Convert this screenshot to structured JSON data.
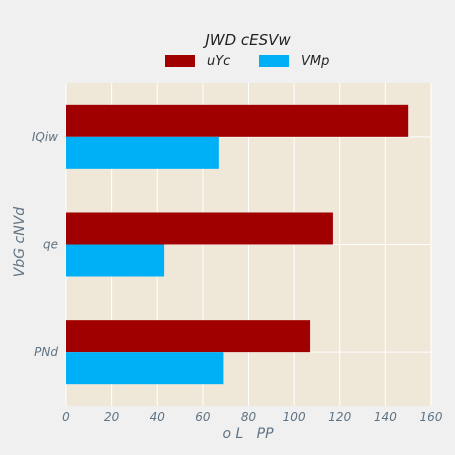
{
  "chart_data": {
    "type": "bar",
    "orientation": "horizontal",
    "categories": [
      "IQiw",
      "qe",
      "PNd"
    ],
    "series": [
      {
        "name": "uYc",
        "color": "#a00000",
        "values": [
          150,
          117,
          107
        ]
      },
      {
        "name": "VMp",
        "color": "#00b0f6",
        "values": [
          67,
          43,
          69
        ]
      }
    ],
    "legend_title": "JWD cESVw",
    "xlabel": "o L   PP",
    "ylabel": "VbG cNVd",
    "xlim": [
      0,
      160
    ],
    "xticks": [
      "0",
      "20",
      "40",
      "60",
      "80",
      "100",
      "120",
      "140",
      "160"
    ],
    "grid": true,
    "legend_position": "top"
  }
}
